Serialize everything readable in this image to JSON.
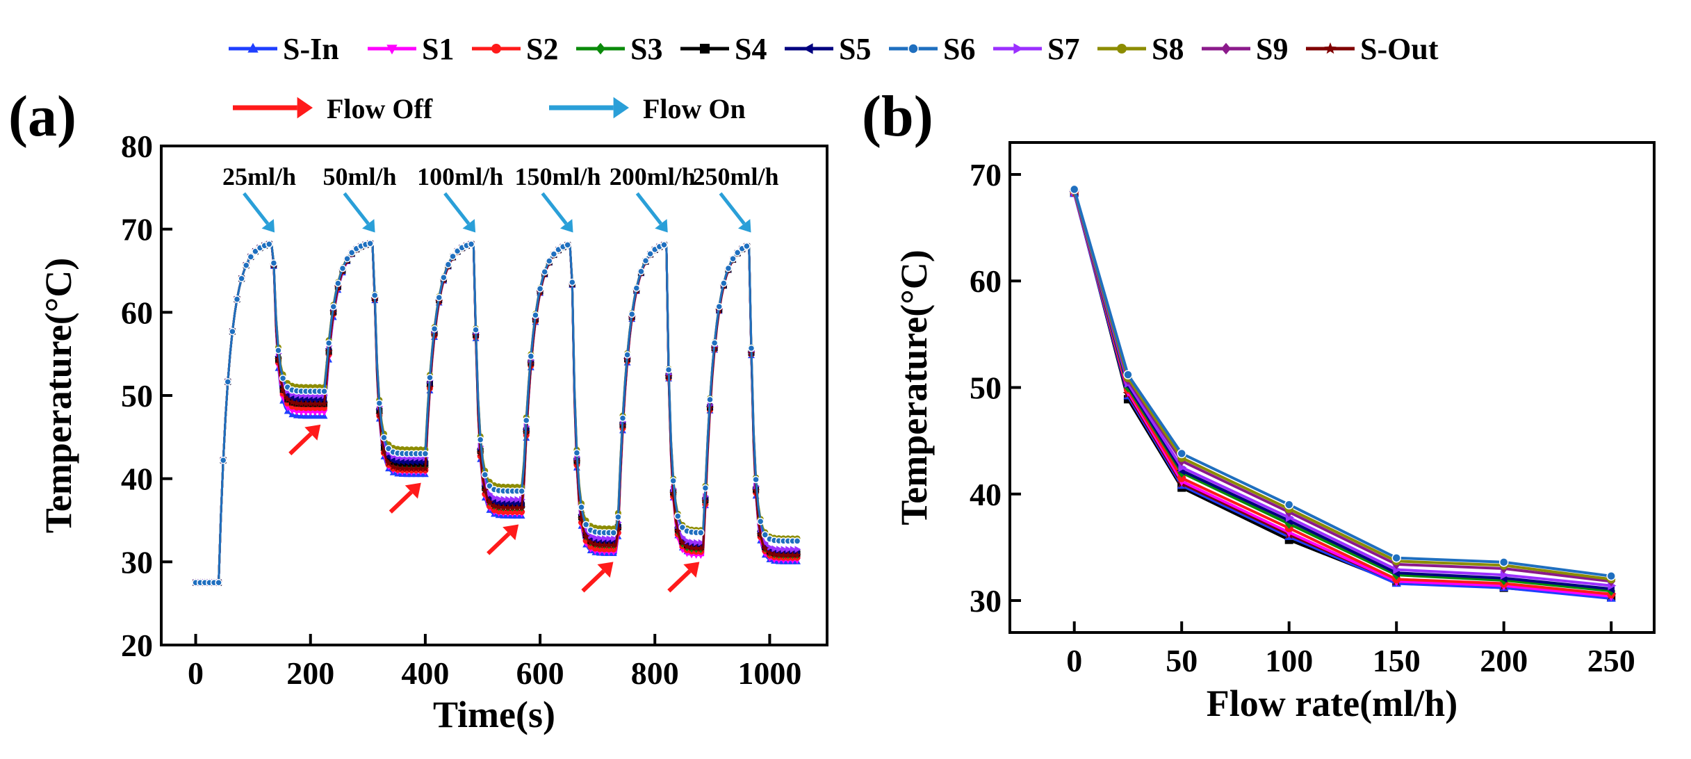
{
  "legend": {
    "series": [
      {
        "name": "S-In",
        "color": "#1f3fff",
        "marker": "triangle-up"
      },
      {
        "name": "S1",
        "color": "#ff00ff",
        "marker": "triangle-down"
      },
      {
        "name": "S2",
        "color": "#ff1a1a",
        "marker": "circle"
      },
      {
        "name": "S3",
        "color": "#0a8a0a",
        "marker": "diamond"
      },
      {
        "name": "S4",
        "color": "#000000",
        "marker": "square"
      },
      {
        "name": "S5",
        "color": "#00007f",
        "marker": "triangle-left"
      },
      {
        "name": "S6",
        "color": "#1f6fbf",
        "marker": "hexagon"
      },
      {
        "name": "S7",
        "color": "#9b30ff",
        "marker": "triangle-right"
      },
      {
        "name": "S8",
        "color": "#8c8c00",
        "marker": "pentagon"
      },
      {
        "name": "S9",
        "color": "#8b1a8b",
        "marker": "diamond"
      },
      {
        "name": "S-Out",
        "color": "#7f0000",
        "marker": "star"
      }
    ]
  },
  "chart_data": [
    {
      "panel_label": "(a)",
      "type": "line",
      "xlabel": "Time(s)",
      "ylabel": "Temperature(°C)",
      "xlim": [
        -60,
        1100
      ],
      "ylim": [
        20,
        80
      ],
      "xticks": [
        "0",
        "200",
        "400",
        "600",
        "800",
        "1000"
      ],
      "yticks": [
        "20",
        "30",
        "40",
        "50",
        "60",
        "70",
        "80"
      ],
      "annotations": {
        "flow_off_label": "Flow Off",
        "flow_on_label": "Flow On",
        "flow_off_color": "#ff1a1a",
        "flow_on_color": "#2a9fd8",
        "flow_rates": [
          {
            "label": "25ml/h",
            "x": 135
          },
          {
            "label": "50ml/h",
            "x": 310
          },
          {
            "label": "100ml/h",
            "x": 485
          },
          {
            "label": "150ml/h",
            "x": 655
          },
          {
            "label": "200ml/h",
            "x": 820
          },
          {
            "label": "250ml/h",
            "x": 965
          }
        ],
        "flow_off_points": [
          {
            "x": 220,
            "y": 47
          },
          {
            "x": 395,
            "y": 40
          },
          {
            "x": 565,
            "y": 35
          },
          {
            "x": 730,
            "y": 30.5
          },
          {
            "x": 880,
            "y": 30.5
          }
        ]
      },
      "time_profile": {
        "initial_temp": 27.5,
        "peak_temp": 68.5,
        "segments": [
          {
            "on": 40,
            "off": 135
          },
          {
            "on": 225,
            "off": 310
          },
          {
            "on": 400,
            "off": 485
          },
          {
            "on": 570,
            "off": 655
          },
          {
            "on": 735,
            "off": 820
          },
          {
            "on": 885,
            "off": 965
          }
        ],
        "end_time": 1050,
        "series_plateaus": {
          "S-In": [
            47.5,
            40.5,
            35.5,
            31.0,
            31.0,
            30.0
          ],
          "S1": [
            48.0,
            40.8,
            35.8,
            31.2,
            30.8,
            30.2
          ],
          "S2": [
            48.5,
            41.0,
            36.0,
            31.5,
            31.2,
            30.5
          ],
          "S3": [
            49.0,
            41.5,
            36.5,
            32.0,
            31.5,
            30.8
          ],
          "S4": [
            49.0,
            41.8,
            36.8,
            32.2,
            31.8,
            31.0
          ],
          "S5": [
            49.5,
            42.0,
            37.0,
            32.5,
            32.0,
            31.2
          ],
          "S6": [
            50.5,
            43.0,
            38.5,
            33.5,
            33.5,
            32.5
          ],
          "S7": [
            50.0,
            42.5,
            37.5,
            32.8,
            32.3,
            31.5
          ],
          "S8": [
            51.0,
            43.5,
            39.0,
            34.0,
            33.8,
            32.8
          ],
          "S9": [
            50.8,
            43.2,
            38.8,
            33.8,
            33.6,
            32.6
          ],
          "S-Out": [
            49.0,
            41.2,
            36.5,
            32.0,
            31.6,
            30.8
          ]
        }
      }
    },
    {
      "panel_label": "(b)",
      "type": "line",
      "xlabel": "Flow rate(ml/h)",
      "ylabel": "Temperature(°C)",
      "xlim": [
        -30,
        270
      ],
      "ylim": [
        27,
        73
      ],
      "xticks": [
        "0",
        "50",
        "100",
        "150",
        "200",
        "250"
      ],
      "yticks": [
        "30",
        "40",
        "50",
        "60",
        "70"
      ],
      "x": [
        0,
        25,
        50,
        100,
        150,
        200,
        250
      ],
      "series": [
        {
          "name": "S-In",
          "values": [
            68.2,
            49.2,
            40.8,
            36.0,
            31.6,
            31.2,
            30.2
          ]
        },
        {
          "name": "S1",
          "values": [
            68.3,
            49.6,
            41.2,
            36.4,
            31.8,
            31.4,
            30.4
          ]
        },
        {
          "name": "S2",
          "values": [
            68.3,
            49.8,
            41.5,
            36.8,
            32.0,
            31.6,
            30.6
          ]
        },
        {
          "name": "S3",
          "values": [
            68.4,
            50.0,
            42.0,
            37.2,
            32.4,
            31.9,
            30.9
          ]
        },
        {
          "name": "S4",
          "values": [
            68.3,
            48.9,
            40.6,
            35.7,
            31.7,
            31.2,
            30.3
          ]
        },
        {
          "name": "S5",
          "values": [
            68.4,
            50.2,
            42.2,
            37.5,
            32.6,
            32.1,
            31.1
          ]
        },
        {
          "name": "S6",
          "values": [
            68.6,
            51.2,
            43.8,
            39.0,
            34.0,
            33.6,
            32.3
          ]
        },
        {
          "name": "S7",
          "values": [
            68.4,
            50.4,
            42.5,
            37.8,
            32.9,
            32.4,
            31.4
          ]
        },
        {
          "name": "S8",
          "values": [
            68.5,
            50.9,
            43.4,
            38.6,
            33.7,
            33.3,
            32.0
          ]
        },
        {
          "name": "S9",
          "values": [
            68.5,
            50.7,
            43.1,
            38.3,
            33.4,
            33.0,
            31.8
          ]
        },
        {
          "name": "S-Out",
          "values": [
            68.4,
            49.4,
            41.0,
            36.2,
            31.8,
            31.4,
            30.5
          ]
        }
      ]
    }
  ]
}
